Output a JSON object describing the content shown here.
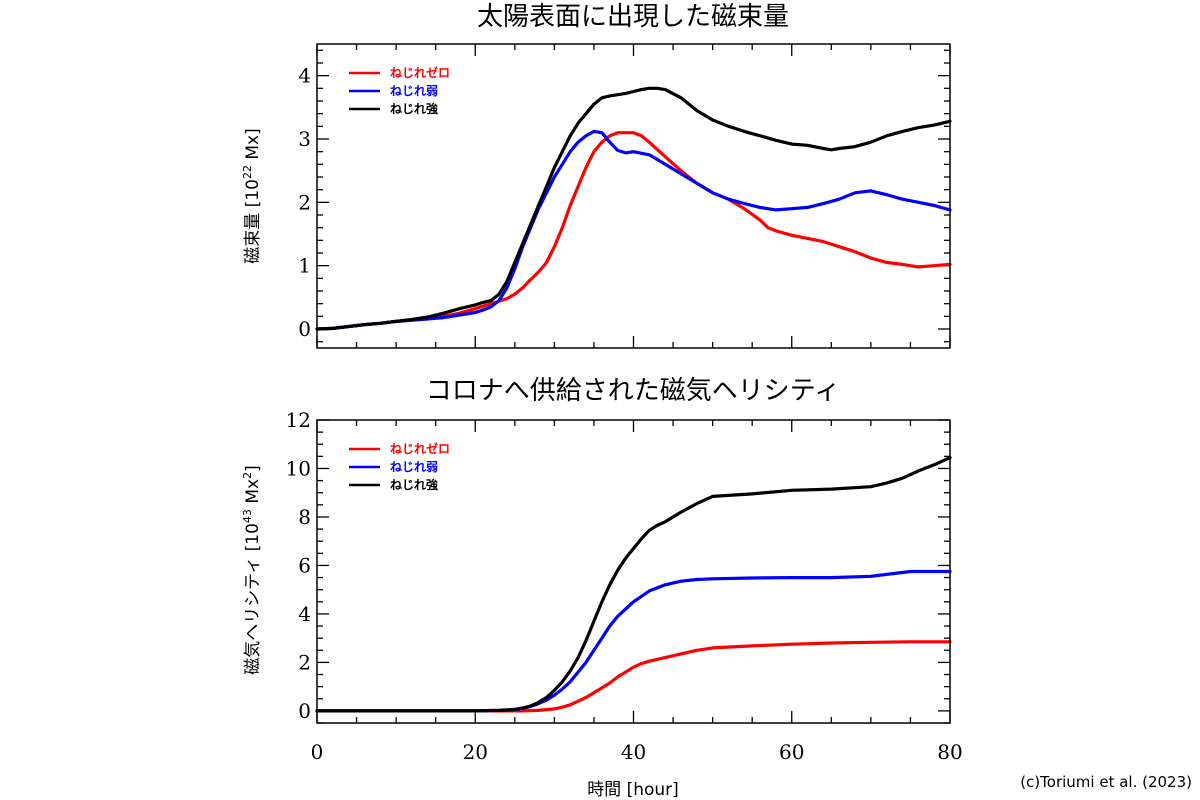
{
  "credit": "(c)Toriumi et al. (2023)",
  "chart_data": [
    {
      "type": "line",
      "title": "太陽表面に出現した磁束量",
      "ylabel_main": "磁束量 [10",
      "ylabel_exp": "22",
      "ylabel_tail": " Mx]",
      "xlim": [
        0,
        80
      ],
      "ylim": [
        -0.3,
        4.5
      ],
      "xticks": [
        0,
        20,
        40,
        60,
        80
      ],
      "yticks": [
        0,
        1,
        2,
        3,
        4
      ],
      "xminor": 5,
      "yminor": 0.2,
      "show_xticklabels": false,
      "legend_position": "top-left",
      "series": [
        {
          "name": "ねじれゼロ",
          "color": "#ff0000",
          "x": [
            0,
            2,
            4,
            6,
            8,
            10,
            12,
            14,
            16,
            18,
            20,
            22,
            24,
            25,
            26,
            27,
            28,
            29,
            30,
            31,
            32,
            33,
            34,
            35,
            36,
            37,
            38,
            39,
            40,
            41,
            42,
            44,
            46,
            48,
            50,
            52,
            54,
            56,
            57,
            58,
            60,
            62,
            64,
            66,
            68,
            70,
            72,
            74,
            76,
            78,
            80
          ],
          "values": [
            0,
            0.01,
            0.04,
            0.07,
            0.09,
            0.12,
            0.14,
            0.16,
            0.2,
            0.25,
            0.32,
            0.4,
            0.48,
            0.55,
            0.65,
            0.78,
            0.9,
            1.05,
            1.3,
            1.6,
            1.95,
            2.25,
            2.55,
            2.8,
            2.95,
            3.05,
            3.1,
            3.1,
            3.1,
            3.05,
            2.95,
            2.72,
            2.5,
            2.3,
            2.15,
            2.05,
            1.9,
            1.72,
            1.6,
            1.55,
            1.48,
            1.43,
            1.38,
            1.3,
            1.22,
            1.12,
            1.05,
            1.02,
            0.98,
            1.0,
            1.02
          ]
        },
        {
          "name": "ねじれ弱",
          "color": "#0000ff",
          "x": [
            0,
            2,
            4,
            6,
            8,
            10,
            12,
            14,
            16,
            18,
            20,
            21,
            22,
            23,
            24,
            25,
            26,
            27,
            28,
            29,
            30,
            31,
            32,
            33,
            34,
            35,
            36,
            37,
            38,
            39,
            40,
            42,
            44,
            46,
            48,
            50,
            52,
            54,
            56,
            58,
            60,
            62,
            64,
            66,
            68,
            70,
            72,
            74,
            76,
            78,
            80
          ],
          "values": [
            0,
            0.01,
            0.04,
            0.07,
            0.09,
            0.12,
            0.14,
            0.16,
            0.18,
            0.22,
            0.26,
            0.3,
            0.35,
            0.45,
            0.65,
            0.95,
            1.3,
            1.6,
            1.9,
            2.15,
            2.4,
            2.6,
            2.8,
            2.95,
            3.05,
            3.12,
            3.1,
            2.95,
            2.82,
            2.78,
            2.8,
            2.75,
            2.6,
            2.45,
            2.3,
            2.15,
            2.05,
            1.98,
            1.92,
            1.88,
            1.9,
            1.92,
            1.98,
            2.05,
            2.15,
            2.18,
            2.12,
            2.05,
            2.0,
            1.95,
            1.88
          ]
        },
        {
          "name": "ねじれ強",
          "color": "#000000",
          "x": [
            0,
            2,
            4,
            6,
            8,
            10,
            12,
            14,
            16,
            18,
            20,
            21,
            22,
            23,
            24,
            25,
            26,
            27,
            28,
            29,
            30,
            31,
            32,
            33,
            34,
            35,
            36,
            37,
            38,
            39,
            40,
            41,
            42,
            43,
            44,
            46,
            48,
            50,
            52,
            54,
            56,
            58,
            60,
            62,
            64,
            65,
            66,
            68,
            70,
            72,
            74,
            76,
            78,
            80
          ],
          "values": [
            0,
            0.01,
            0.04,
            0.07,
            0.09,
            0.12,
            0.15,
            0.19,
            0.25,
            0.32,
            0.38,
            0.42,
            0.45,
            0.55,
            0.75,
            1.05,
            1.35,
            1.65,
            1.95,
            2.25,
            2.55,
            2.8,
            3.05,
            3.25,
            3.4,
            3.55,
            3.65,
            3.68,
            3.7,
            3.72,
            3.75,
            3.78,
            3.8,
            3.8,
            3.78,
            3.65,
            3.45,
            3.3,
            3.2,
            3.12,
            3.05,
            2.98,
            2.92,
            2.9,
            2.85,
            2.83,
            2.85,
            2.88,
            2.95,
            3.05,
            3.12,
            3.18,
            3.22,
            3.28
          ]
        }
      ]
    },
    {
      "type": "line",
      "title": "コロナへ供給された磁気ヘリシティ",
      "ylabel_main": "磁気ヘリシティ [10",
      "ylabel_exp": "43",
      "ylabel_tail": " Mx",
      "ylabel_exp2": "2",
      "ylabel_end": "]",
      "xlim": [
        0,
        80
      ],
      "ylim": [
        -0.5,
        12
      ],
      "xticks": [
        0,
        20,
        40,
        60,
        80
      ],
      "yticks": [
        0,
        2,
        4,
        6,
        8,
        10,
        12
      ],
      "xminor": 5,
      "yminor": 0.5,
      "show_xticklabels": true,
      "xticklabels": [
        "0",
        "20",
        "40",
        "60",
        "80"
      ],
      "xlabel": "時間 [hour]",
      "legend_position": "top-left",
      "series": [
        {
          "name": "ねじれゼロ",
          "color": "#ff0000",
          "x": [
            0,
            10,
            20,
            26,
            28,
            30,
            31,
            32,
            33,
            34,
            35,
            36,
            37,
            38,
            39,
            40,
            41,
            42,
            44,
            46,
            48,
            50,
            55,
            60,
            65,
            70,
            75,
            80
          ],
          "values": [
            0,
            0,
            0,
            0,
            0.02,
            0.08,
            0.15,
            0.25,
            0.4,
            0.55,
            0.75,
            0.95,
            1.15,
            1.4,
            1.6,
            1.8,
            1.95,
            2.05,
            2.2,
            2.35,
            2.5,
            2.6,
            2.68,
            2.75,
            2.8,
            2.83,
            2.85,
            2.85
          ]
        },
        {
          "name": "ねじれ弱",
          "color": "#0000ff",
          "x": [
            0,
            10,
            20,
            23,
            25,
            26,
            27,
            28,
            29,
            30,
            31,
            32,
            33,
            34,
            35,
            36,
            37,
            38,
            40,
            42,
            44,
            46,
            48,
            50,
            55,
            60,
            65,
            70,
            75,
            80
          ],
          "values": [
            0,
            0,
            0,
            0.02,
            0.05,
            0.1,
            0.18,
            0.3,
            0.45,
            0.65,
            0.9,
            1.2,
            1.6,
            2.0,
            2.5,
            3.0,
            3.5,
            3.9,
            4.5,
            4.95,
            5.2,
            5.35,
            5.42,
            5.45,
            5.48,
            5.5,
            5.5,
            5.55,
            5.75,
            5.75
          ]
        },
        {
          "name": "ねじれ強",
          "color": "#000000",
          "x": [
            0,
            10,
            20,
            23,
            25,
            26,
            27,
            28,
            29,
            30,
            31,
            32,
            33,
            34,
            35,
            36,
            37,
            38,
            39,
            40,
            41,
            42,
            43,
            44,
            46,
            48,
            50,
            55,
            60,
            65,
            70,
            72,
            74,
            76,
            78,
            80
          ],
          "values": [
            0,
            0,
            0,
            0.02,
            0.06,
            0.12,
            0.2,
            0.35,
            0.55,
            0.85,
            1.2,
            1.65,
            2.2,
            2.9,
            3.7,
            4.5,
            5.2,
            5.8,
            6.3,
            6.7,
            7.1,
            7.45,
            7.65,
            7.8,
            8.2,
            8.55,
            8.85,
            8.95,
            9.1,
            9.15,
            9.25,
            9.4,
            9.6,
            9.9,
            10.15,
            10.45
          ]
        }
      ]
    }
  ]
}
